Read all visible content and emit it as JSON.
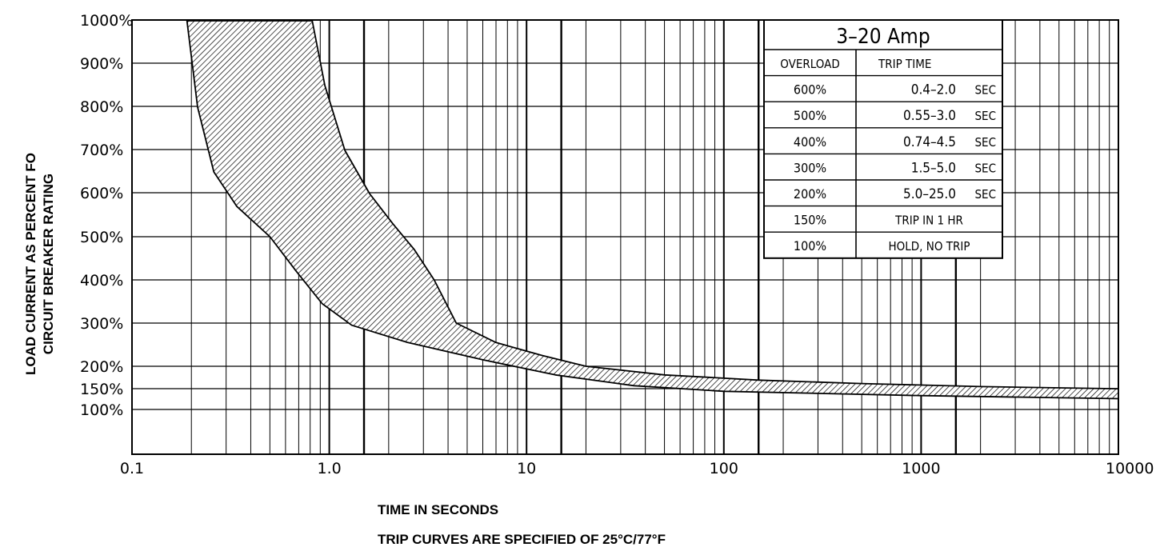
{
  "chart_data": {
    "type": "area",
    "title": "",
    "xlabel": "TIME IN SECONDS",
    "ylabel_lines": [
      "LOAD CURRENT AS PERCENT FO",
      "CIRCUIT BREAKER RATING"
    ],
    "note": "TRIP CURVES ARE SPECIFIED OF 25°C/77°F",
    "x_scale": "log",
    "xlim": [
      0.1,
      10000
    ],
    "x_ticks": [
      "0.1",
      "1.0",
      "10",
      "100",
      "1000",
      "10000"
    ],
    "y_ticks": [
      "1000%",
      "900%",
      "800%",
      "700%",
      "600%",
      "500%",
      "400%",
      "300%",
      "200%",
      "150%",
      "100%"
    ],
    "grid": true,
    "series": [
      {
        "upper_edge": [
          {
            "x": 0.82,
            "y": 1000
          },
          {
            "x": 0.95,
            "y": 850
          },
          {
            "x": 1.2,
            "y": 700
          },
          {
            "x": 1.6,
            "y": 600
          },
          {
            "x": 2.1,
            "y": 530
          },
          {
            "x": 2.7,
            "y": 470
          },
          {
            "x": 3.4,
            "y": 400
          },
          {
            "x": 4.4,
            "y": 300
          },
          {
            "x": 7,
            "y": 255
          },
          {
            "x": 12,
            "y": 225
          },
          {
            "x": 20,
            "y": 200
          },
          {
            "x": 50,
            "y": 180
          },
          {
            "x": 150,
            "y": 168
          },
          {
            "x": 500,
            "y": 160
          },
          {
            "x": 2000,
            "y": 153
          },
          {
            "x": 10000,
            "y": 148
          }
        ],
        "lower_edge": [
          {
            "x": 0.19,
            "y": 1000
          },
          {
            "x": 0.215,
            "y": 800
          },
          {
            "x": 0.26,
            "y": 650
          },
          {
            "x": 0.34,
            "y": 570
          },
          {
            "x": 0.5,
            "y": 500
          },
          {
            "x": 0.68,
            "y": 420
          },
          {
            "x": 0.92,
            "y": 345
          },
          {
            "x": 1.3,
            "y": 295
          },
          {
            "x": 2.5,
            "y": 255
          },
          {
            "x": 6,
            "y": 215
          },
          {
            "x": 14,
            "y": 180
          },
          {
            "x": 35,
            "y": 155
          },
          {
            "x": 100,
            "y": 142
          },
          {
            "x": 1000,
            "y": 132
          },
          {
            "x": 10000,
            "y": 125
          }
        ]
      }
    ],
    "table": {
      "title": "3–20 Amp",
      "headers": [
        "OVERLOAD",
        "TRIP TIME"
      ],
      "rows": [
        [
          "600%",
          "0.4–2.0",
          "SEC"
        ],
        [
          "500%",
          "0.55–3.0",
          "SEC"
        ],
        [
          "400%",
          "0.74–4.5",
          "SEC"
        ],
        [
          "300%",
          "1.5–5.0",
          "SEC"
        ],
        [
          "200%",
          "5.0–25.0",
          "SEC"
        ],
        [
          "150%",
          "TRIP IN 1 HR",
          ""
        ],
        [
          "100%",
          "HOLD, NO TRIP",
          ""
        ]
      ]
    }
  }
}
